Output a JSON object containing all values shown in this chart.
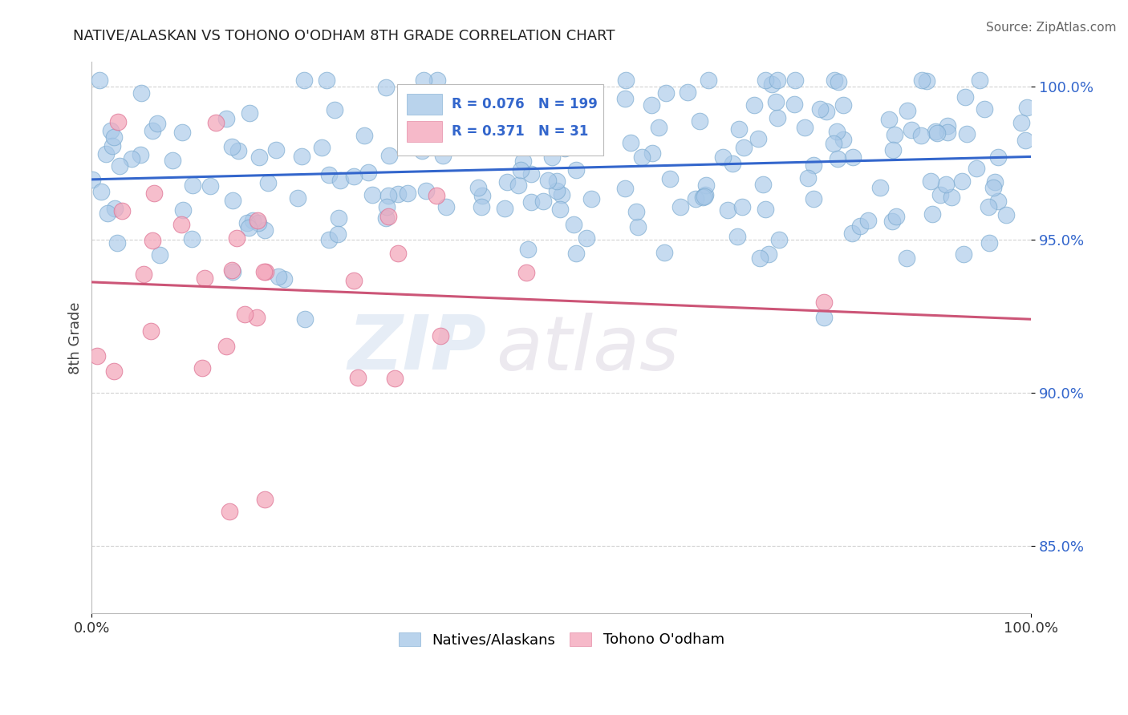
{
  "title": "NATIVE/ALASKAN VS TOHONO O'ODHAM 8TH GRADE CORRELATION CHART",
  "source": "Source: ZipAtlas.com",
  "ylabel": "8th Grade",
  "xlim": [
    0.0,
    1.0
  ],
  "ylim": [
    0.828,
    1.008
  ],
  "x_tick_labels": [
    "0.0%",
    "100.0%"
  ],
  "y_ticks": [
    0.85,
    0.9,
    0.95,
    1.0
  ],
  "y_tick_labels": [
    "85.0%",
    "90.0%",
    "95.0%",
    "100.0%"
  ],
  "blue_color": "#a8c8e8",
  "blue_edge_color": "#7aaad0",
  "pink_color": "#f4a8bc",
  "pink_edge_color": "#e07898",
  "blue_line_color": "#3366cc",
  "pink_line_color": "#cc5577",
  "legend_blue_label": "Natives/Alaskans",
  "legend_pink_label": "Tohono O'odham",
  "R_blue": 0.076,
  "N_blue": 199,
  "R_pink": 0.371,
  "N_pink": 31,
  "watermark_zip": "ZIP",
  "watermark_atlas": "atlas",
  "background_color": "#ffffff",
  "grid_color": "#cccccc",
  "title_color": "#222222",
  "legend_text_color": "#3366cc",
  "axis_tick_color": "#3366cc",
  "ylabel_color": "#444444"
}
